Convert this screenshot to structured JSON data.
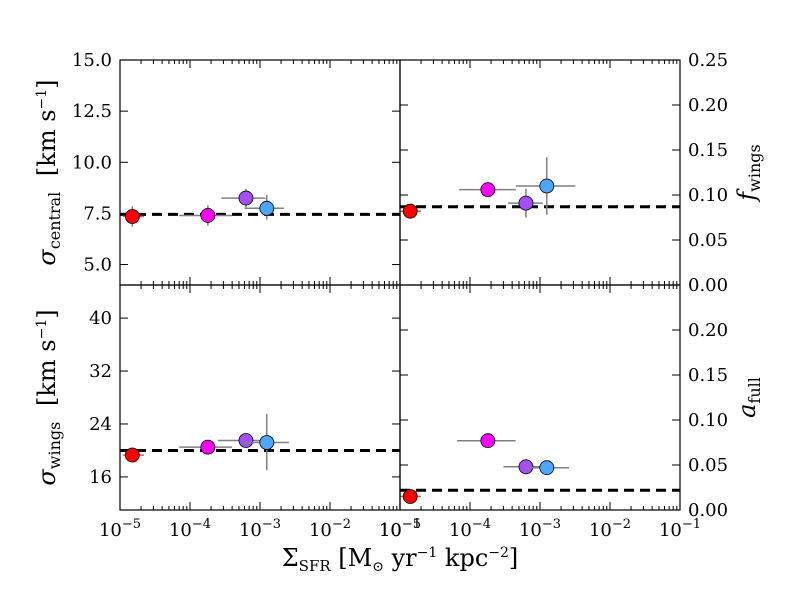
{
  "chart_data": {
    "type": "scatter",
    "xlabel": {
      "main": "Σ",
      "sub": "SFR",
      "rest": " [M",
      "sun": "⊙",
      "yr": " yr",
      "yr_exp": "−1",
      "kpc": " kpc",
      "kpc_exp": "−2",
      "close": "]"
    },
    "x_ticks": [
      {
        "base": "10",
        "exp": "−5"
      },
      {
        "base": "10",
        "exp": "−4"
      },
      {
        "base": "10",
        "exp": "−3"
      },
      {
        "base": "10",
        "exp": "−2"
      },
      {
        "base": "10",
        "exp": "−1"
      }
    ],
    "xlim": [
      -5,
      -1
    ],
    "marker_colors": [
      "#ff0000",
      "#ff00ff",
      "#a64dff",
      "#4da6ff"
    ],
    "reference_line_color": "#000000",
    "errorbar_color": "#808080",
    "panels": [
      {
        "id": "sigma-central",
        "position": "top-left",
        "ylabel": {
          "main": "σ",
          "sub": "central",
          "unit_pre": "[km s",
          "unit_exp": "−1",
          "unit_post": "]"
        },
        "ylabel_side": "left",
        "ylim": [
          4.0,
          15.0
        ],
        "yticks": [
          "5.0",
          "7.5",
          "10.0",
          "12.5",
          "15.0"
        ],
        "reference_value": 7.45,
        "points": [
          {
            "x": 1.5e-05,
            "y": 7.35,
            "xerr": [
              1.1e-05,
              2.2e-05
            ],
            "yerr": [
              6.85,
              7.85
            ]
          },
          {
            "x": 0.00018,
            "y": 7.4,
            "xerr": [
              7e-05,
              0.0004
            ],
            "yerr": [
              6.9,
              7.9
            ]
          },
          {
            "x": 0.00063,
            "y": 8.25,
            "xerr": [
              0.00028,
              0.0012
            ],
            "yerr": [
              7.8,
              8.7
            ]
          },
          {
            "x": 0.00125,
            "y": 7.75,
            "xerr": [
              0.0006,
              0.0022
            ],
            "yerr": [
              7.2,
              8.4
            ]
          }
        ]
      },
      {
        "id": "f-wings",
        "position": "top-right",
        "ylabel": {
          "main": "f",
          "sub": "wings"
        },
        "ylabel_side": "right",
        "ylim": [
          0.0,
          0.25
        ],
        "yticks": [
          "0.00",
          "0.05",
          "0.10",
          "0.15",
          "0.20",
          "0.25"
        ],
        "reference_value": 0.087,
        "points": [
          {
            "x": 1.4e-05,
            "y": 0.082,
            "xerr": [
              1e-05,
              2e-05
            ],
            "yerr": [
              0.078,
              0.086
            ]
          },
          {
            "x": 0.00018,
            "y": 0.106,
            "xerr": [
              7e-05,
              0.00045
            ],
            "yerr": [
              0.1,
              0.11
            ]
          },
          {
            "x": 0.00063,
            "y": 0.091,
            "xerr": [
              0.00035,
              0.0011
            ],
            "yerr": [
              0.075,
              0.107
            ]
          },
          {
            "x": 0.00125,
            "y": 0.11,
            "xerr": [
              0.00045,
              0.0032
            ],
            "yerr": [
              0.078,
              0.142
            ]
          }
        ]
      },
      {
        "id": "sigma-wings",
        "position": "bottom-left",
        "ylabel": {
          "main": "σ",
          "sub": "wings",
          "unit_pre": "[km s",
          "unit_exp": "−1",
          "unit_post": "]"
        },
        "ylabel_side": "left",
        "ylim": [
          11.0,
          45.0
        ],
        "yticks": [
          "16",
          "24",
          "32",
          "40"
        ],
        "reference_value": 20.0,
        "points": [
          {
            "x": 1.5e-05,
            "y": 19.3,
            "xerr": [
              1.1e-05,
              2.2e-05
            ],
            "yerr": [
              18.8,
              19.8
            ]
          },
          {
            "x": 0.00018,
            "y": 20.5,
            "xerr": [
              7e-05,
              0.0004
            ],
            "yerr": [
              20.0,
              21.0
            ]
          },
          {
            "x": 0.00063,
            "y": 21.5,
            "xerr": [
              0.00025,
              0.0012
            ],
            "yerr": [
              21.0,
              22.0
            ]
          },
          {
            "x": 0.00125,
            "y": 21.2,
            "xerr": [
              0.00055,
              0.0026
            ],
            "yerr": [
              17.0,
              25.5
            ]
          }
        ]
      },
      {
        "id": "a-full",
        "position": "bottom-right",
        "ylabel": {
          "main": "a",
          "sub": "full"
        },
        "ylabel_side": "right",
        "ylim": [
          0.0,
          0.25
        ],
        "yticks": [
          "0.00",
          "0.05",
          "0.10",
          "0.15",
          "0.20"
        ],
        "reference_value": 0.022,
        "points": [
          {
            "x": 1.4e-05,
            "y": 0.015,
            "xerr": [
              1e-05,
              2e-05
            ],
            "yerr": [
              0.013,
              0.017
            ]
          },
          {
            "x": 0.00018,
            "y": 0.077,
            "xerr": [
              6.5e-05,
              0.00045
            ],
            "yerr": [
              0.075,
              0.079
            ]
          },
          {
            "x": 0.00063,
            "y": 0.048,
            "xerr": [
              0.0003,
              0.0011
            ],
            "yerr": [
              0.046,
              0.05
            ]
          },
          {
            "x": 0.00125,
            "y": 0.047,
            "xerr": [
              0.0006,
              0.0026
            ],
            "yerr": [
              0.045,
              0.049
            ]
          }
        ]
      }
    ]
  }
}
